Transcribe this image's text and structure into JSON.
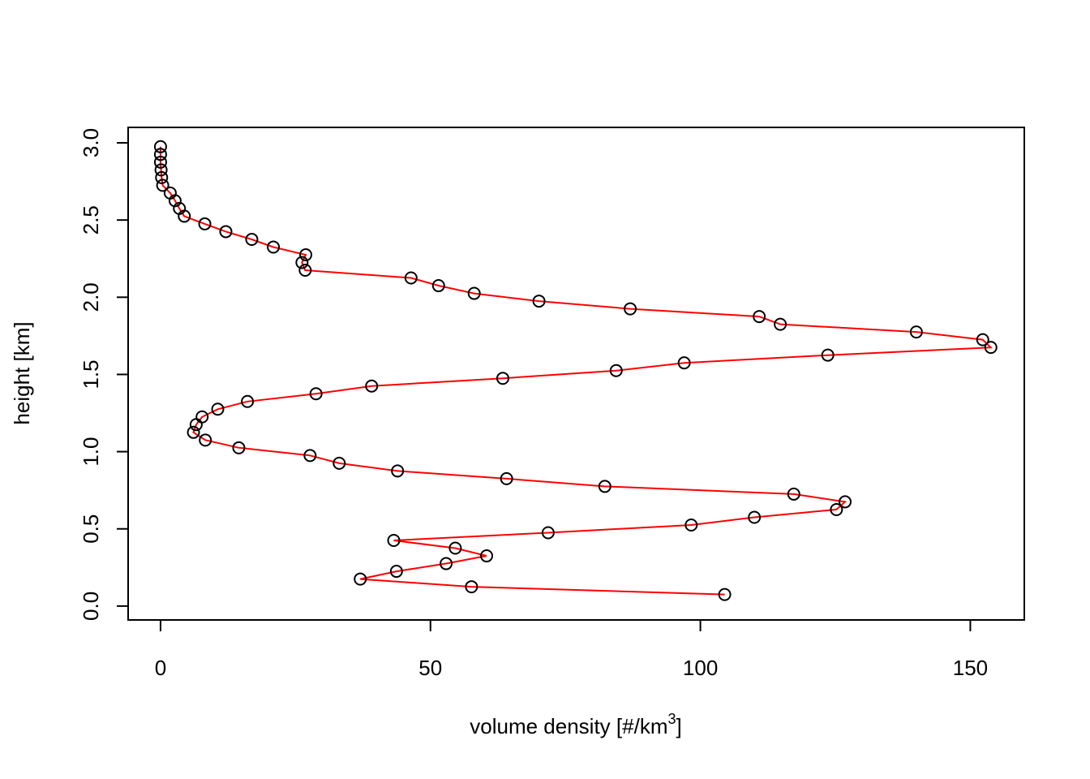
{
  "chart_data": {
    "type": "line",
    "title": "",
    "xlabel": "volume density [#/km",
    "xlabel_superscript": "3",
    "xlabel_suffix": "]",
    "ylabel": "height [km]",
    "xlim": [
      -6,
      160
    ],
    "ylim": [
      -0.09,
      3.1
    ],
    "x_ticks": [
      0,
      50,
      100,
      150
    ],
    "x_tick_labels": [
      "0",
      "50",
      "100",
      "150"
    ],
    "y_ticks": [
      0.0,
      0.5,
      1.0,
      1.5,
      2.0,
      2.5,
      3.0
    ],
    "y_tick_labels": [
      "0.0",
      "0.5",
      "1.0",
      "1.5",
      "2.0",
      "2.5",
      "3.0"
    ],
    "grid": false,
    "line_color": "#ff0000",
    "marker": "open-circle",
    "marker_color": "#000000",
    "series": [
      {
        "x": [
          104.5,
          57.6,
          37.0,
          43.7,
          52.9,
          60.4,
          54.6,
          43.2,
          71.8,
          98.3,
          110.0,
          125.2,
          126.8,
          117.3,
          82.3,
          64.1,
          43.9,
          33.1,
          27.7,
          14.5,
          8.3,
          6.1,
          6.6,
          7.7,
          10.6,
          16.1,
          28.8,
          39.1,
          63.4,
          84.4,
          97.0,
          123.6,
          153.8,
          152.3,
          140.0,
          114.8,
          110.9,
          87.0,
          70.1,
          58.1,
          51.5,
          46.4,
          26.8,
          26.2,
          26.9,
          20.9,
          16.9,
          12.1,
          8.2,
          4.4,
          3.5,
          2.7,
          1.8,
          0.4,
          0.2,
          0.1,
          0.0,
          0.0,
          0.0
        ],
        "y": [
          0.075,
          0.125,
          0.175,
          0.225,
          0.275,
          0.325,
          0.375,
          0.425,
          0.475,
          0.525,
          0.575,
          0.625,
          0.675,
          0.725,
          0.775,
          0.825,
          0.875,
          0.925,
          0.975,
          1.025,
          1.075,
          1.125,
          1.175,
          1.225,
          1.275,
          1.325,
          1.375,
          1.425,
          1.475,
          1.525,
          1.575,
          1.625,
          1.675,
          1.725,
          1.775,
          1.825,
          1.875,
          1.925,
          1.975,
          2.025,
          2.075,
          2.125,
          2.175,
          2.225,
          2.275,
          2.325,
          2.375,
          2.425,
          2.475,
          2.525,
          2.575,
          2.625,
          2.675,
          2.725,
          2.775,
          2.825,
          2.875,
          2.925,
          2.975
        ]
      }
    ]
  }
}
